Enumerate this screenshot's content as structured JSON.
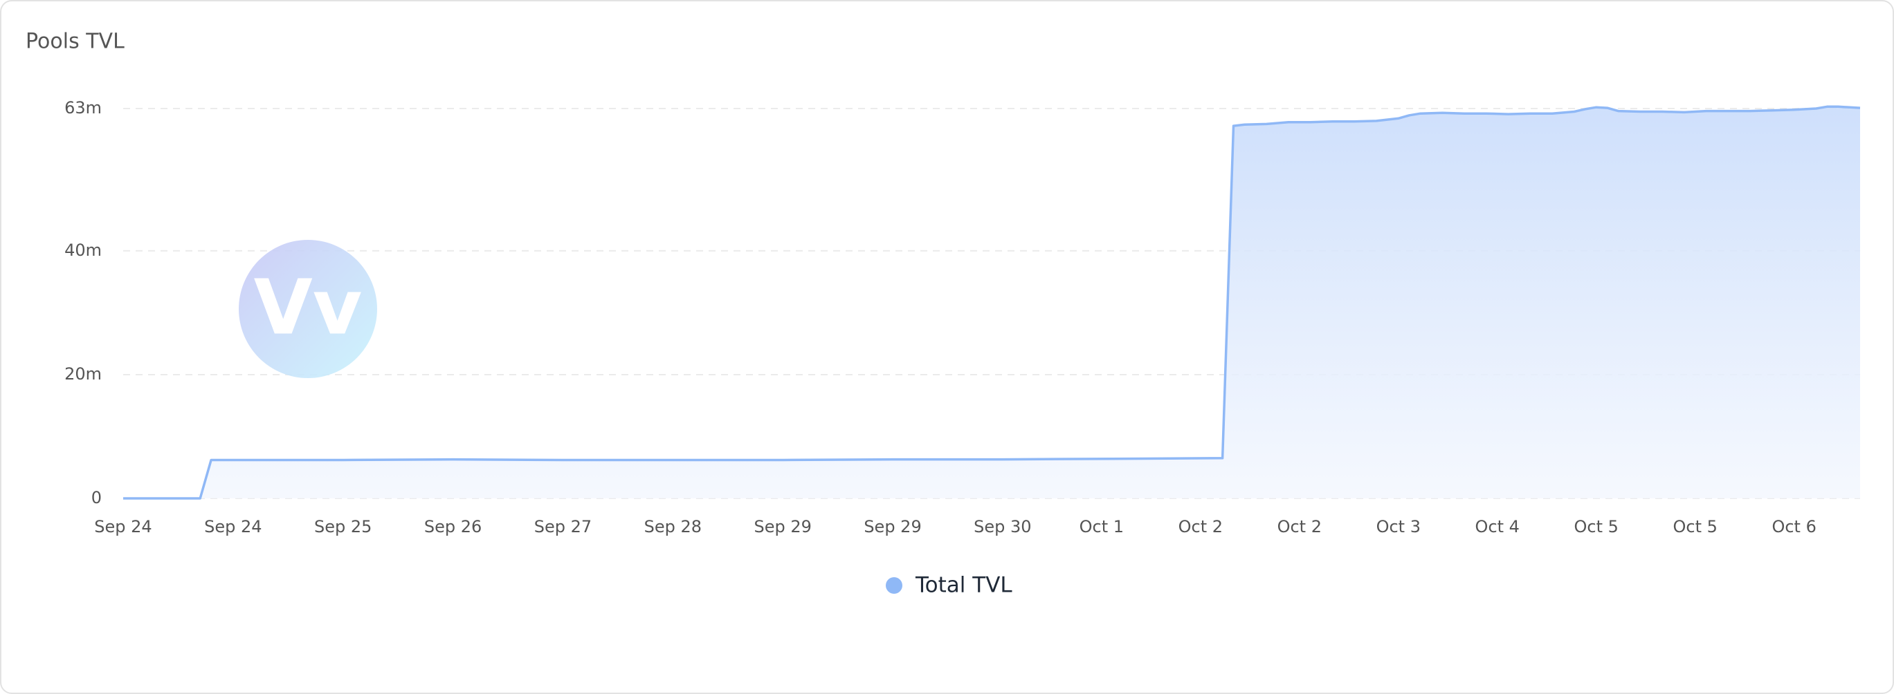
{
  "chart_data": {
    "type": "area",
    "title": "Pools TVL",
    "x": [
      0,
      7,
      8,
      10,
      20,
      30,
      40,
      50,
      60,
      70,
      80,
      90,
      100,
      101,
      102,
      104,
      106,
      108,
      110,
      112,
      114,
      116,
      117,
      118,
      120,
      122,
      124,
      126,
      128,
      130,
      132,
      133,
      134,
      135,
      136,
      138,
      140,
      142,
      144,
      146,
      148,
      150,
      152,
      154,
      155,
      156,
      158
    ],
    "series": [
      {
        "name": "Total TVL",
        "color": "#8fb8f6",
        "values": [
          0,
          0,
          6.2,
          6.2,
          6.2,
          6.3,
          6.2,
          6.2,
          6.2,
          6.3,
          6.3,
          6.4,
          6.5,
          60.2,
          60.4,
          60.5,
          60.8,
          60.8,
          60.9,
          60.9,
          61.0,
          61.4,
          61.9,
          62.2,
          62.3,
          62.2,
          62.2,
          62.1,
          62.2,
          62.2,
          62.5,
          62.9,
          63.2,
          63.1,
          62.6,
          62.5,
          62.5,
          62.4,
          62.6,
          62.6,
          62.6,
          62.7,
          62.8,
          63.0,
          63.3,
          63.3,
          63.1
        ]
      }
    ],
    "xlim": [
      0,
      158
    ],
    "xticks": [
      {
        "value": 0,
        "label": "Sep 24"
      },
      {
        "value": 10,
        "label": "Sep 24"
      },
      {
        "value": 20,
        "label": "Sep 25"
      },
      {
        "value": 30,
        "label": "Sep 26"
      },
      {
        "value": 40,
        "label": "Sep 27"
      },
      {
        "value": 50,
        "label": "Sep 28"
      },
      {
        "value": 60,
        "label": "Sep 29"
      },
      {
        "value": 70,
        "label": "Sep 29"
      },
      {
        "value": 80,
        "label": "Sep 30"
      },
      {
        "value": 89,
        "label": "Oct 1"
      },
      {
        "value": 98,
        "label": "Oct 2"
      },
      {
        "value": 107,
        "label": "Oct 2"
      },
      {
        "value": 116,
        "label": "Oct 3"
      },
      {
        "value": 125,
        "label": "Oct 4"
      },
      {
        "value": 134,
        "label": "Oct 5"
      },
      {
        "value": 143,
        "label": "Oct 5"
      },
      {
        "value": 152,
        "label": "Oct 6"
      }
    ],
    "ylim": [
      0,
      63
    ],
    "yticks": [
      0,
      {
        "value": 20,
        "label": "20m"
      },
      {
        "value": 40,
        "label": "40m"
      },
      {
        "value": 63,
        "label": "63m"
      }
    ],
    "grid": true
  },
  "watermark": "Vv"
}
